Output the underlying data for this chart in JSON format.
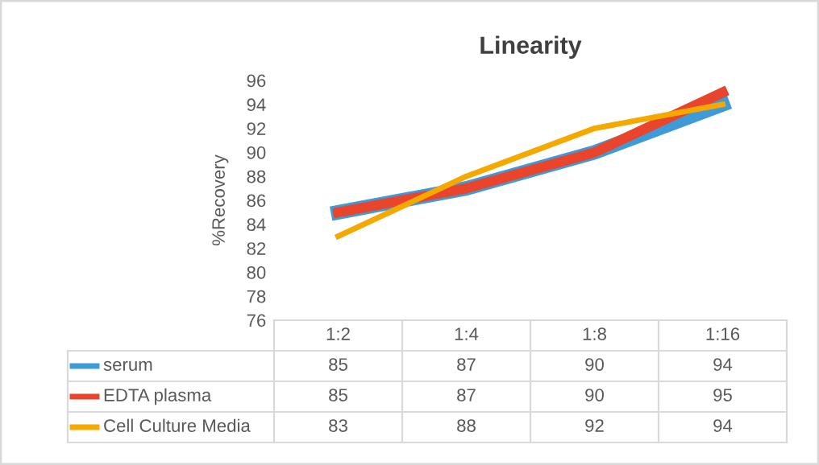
{
  "chart_data": {
    "type": "line",
    "title": "Linearity",
    "ylabel": "%Recovery",
    "categories": [
      "1:2",
      "1:4",
      "1:8",
      "1:16"
    ],
    "series": [
      {
        "name": "serum",
        "color": "#3e9bd8",
        "values": [
          85,
          87,
          90,
          94
        ]
      },
      {
        "name": "EDTA plasma",
        "color": "#e8452c",
        "values": [
          85,
          87,
          90,
          95
        ]
      },
      {
        "name": "Cell Culture Media",
        "color": "#f5a800",
        "values": [
          83,
          88,
          92,
          94
        ]
      }
    ],
    "ylim": [
      76,
      96
    ],
    "yticks": [
      76,
      78,
      80,
      82,
      84,
      86,
      88,
      90,
      92,
      94,
      96
    ],
    "grid": false,
    "legend": "bottom",
    "data_labels": true,
    "marker": "none",
    "line_style": "solid"
  }
}
